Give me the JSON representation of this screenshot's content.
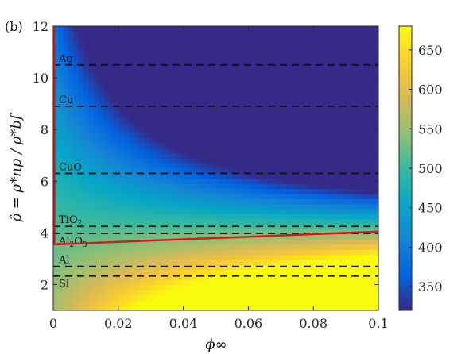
{
  "chart_data": {
    "type": "heatmap",
    "panel_label": "(b)",
    "xlabel": "ϕ∞",
    "ylabel": "ρ̂ = ρ*np / ρ*bf",
    "xlim": [
      0,
      0.1
    ],
    "ylim": [
      1,
      12
    ],
    "x_ticks": [
      {
        "v": 0,
        "label": "0"
      },
      {
        "v": 0.02,
        "label": "0.02"
      },
      {
        "v": 0.04,
        "label": "0.04"
      },
      {
        "v": 0.06,
        "label": "0.06"
      },
      {
        "v": 0.08,
        "label": "0.08"
      },
      {
        "v": 0.1,
        "label": "0.1"
      }
    ],
    "y_ticks": [
      {
        "v": 2,
        "label": "2"
      },
      {
        "v": 4,
        "label": "4"
      },
      {
        "v": 6,
        "label": "6"
      },
      {
        "v": 8,
        "label": "8"
      },
      {
        "v": 10,
        "label": "10"
      },
      {
        "v": 12,
        "label": "12"
      }
    ],
    "colorbar": {
      "range": [
        320,
        680
      ],
      "ticks": [
        {
          "v": 350,
          "label": "350"
        },
        {
          "v": 400,
          "label": "400"
        },
        {
          "v": 450,
          "label": "450"
        },
        {
          "v": 500,
          "label": "500"
        },
        {
          "v": 550,
          "label": "550"
        },
        {
          "v": 600,
          "label": "600"
        },
        {
          "v": 650,
          "label": "650"
        }
      ],
      "colormap": "parula"
    },
    "materials": [
      {
        "name": "Ag",
        "y": 10.5
      },
      {
        "name": "Cu",
        "y": 8.9
      },
      {
        "name": "CuO",
        "y": 6.3
      },
      {
        "name": "TiO2",
        "y": 4.25
      },
      {
        "name": "Al2O3",
        "y": 3.98
      },
      {
        "name": "Al",
        "y": 2.7
      },
      {
        "name": "Si",
        "y": 2.33
      }
    ],
    "red_boundary": {
      "vertical_at_x": 0,
      "line": [
        {
          "x": 0,
          "y": 3.55
        },
        {
          "x": 0.1,
          "y": 4.05
        }
      ],
      "color": "#d7191c"
    }
  }
}
